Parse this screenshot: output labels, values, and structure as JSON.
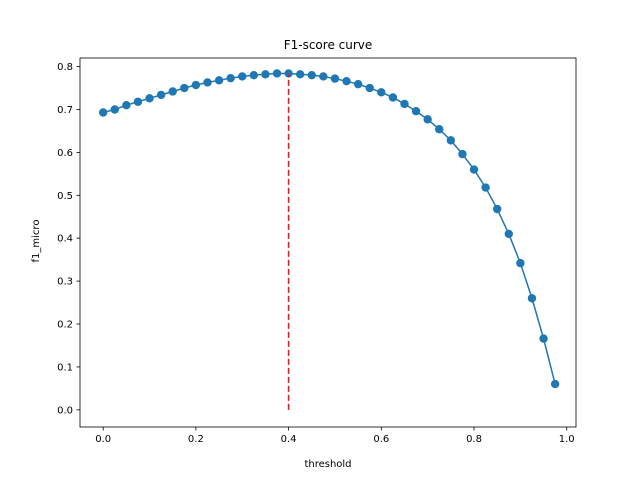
{
  "chart_data": {
    "type": "line",
    "title": "F1-score curve",
    "xlabel": "threshold",
    "ylabel": "f1_micro",
    "xlim": [
      -0.05,
      1.02
    ],
    "ylim": [
      -0.04,
      0.82
    ],
    "xticks": [
      0.0,
      0.2,
      0.4,
      0.6,
      0.8,
      1.0
    ],
    "xtick_labels": [
      "0.0",
      "0.2",
      "0.4",
      "0.6",
      "0.8",
      "1.0"
    ],
    "yticks": [
      0.0,
      0.1,
      0.2,
      0.3,
      0.4,
      0.5,
      0.6,
      0.7,
      0.8
    ],
    "ytick_labels": [
      "0.0",
      "0.1",
      "0.2",
      "0.3",
      "0.4",
      "0.5",
      "0.6",
      "0.7",
      "0.8"
    ],
    "grid": false,
    "series": [
      {
        "color": "#1f77b4",
        "marker": "circle",
        "x": [
          0.0,
          0.025,
          0.05,
          0.075,
          0.1,
          0.125,
          0.15,
          0.175,
          0.2,
          0.225,
          0.25,
          0.275,
          0.3,
          0.325,
          0.35,
          0.375,
          0.4,
          0.425,
          0.45,
          0.475,
          0.5,
          0.525,
          0.55,
          0.575,
          0.6,
          0.625,
          0.65,
          0.675,
          0.7,
          0.725,
          0.75,
          0.775,
          0.8,
          0.825,
          0.85,
          0.875,
          0.9,
          0.925,
          0.95,
          0.975
        ],
        "y": [
          0.693,
          0.7,
          0.71,
          0.718,
          0.726,
          0.734,
          0.742,
          0.75,
          0.757,
          0.763,
          0.768,
          0.773,
          0.777,
          0.78,
          0.782,
          0.784,
          0.784,
          0.782,
          0.78,
          0.777,
          0.772,
          0.766,
          0.759,
          0.75,
          0.74,
          0.728,
          0.713,
          0.696,
          0.677,
          0.654,
          0.628,
          0.596,
          0.56,
          0.518,
          0.468,
          0.41,
          0.342,
          0.26,
          0.166,
          0.06
        ]
      }
    ],
    "vline": {
      "x": 0.4,
      "y0": 0.0,
      "y1": 0.784,
      "color": "#e41a1c",
      "style": "dashed"
    }
  }
}
